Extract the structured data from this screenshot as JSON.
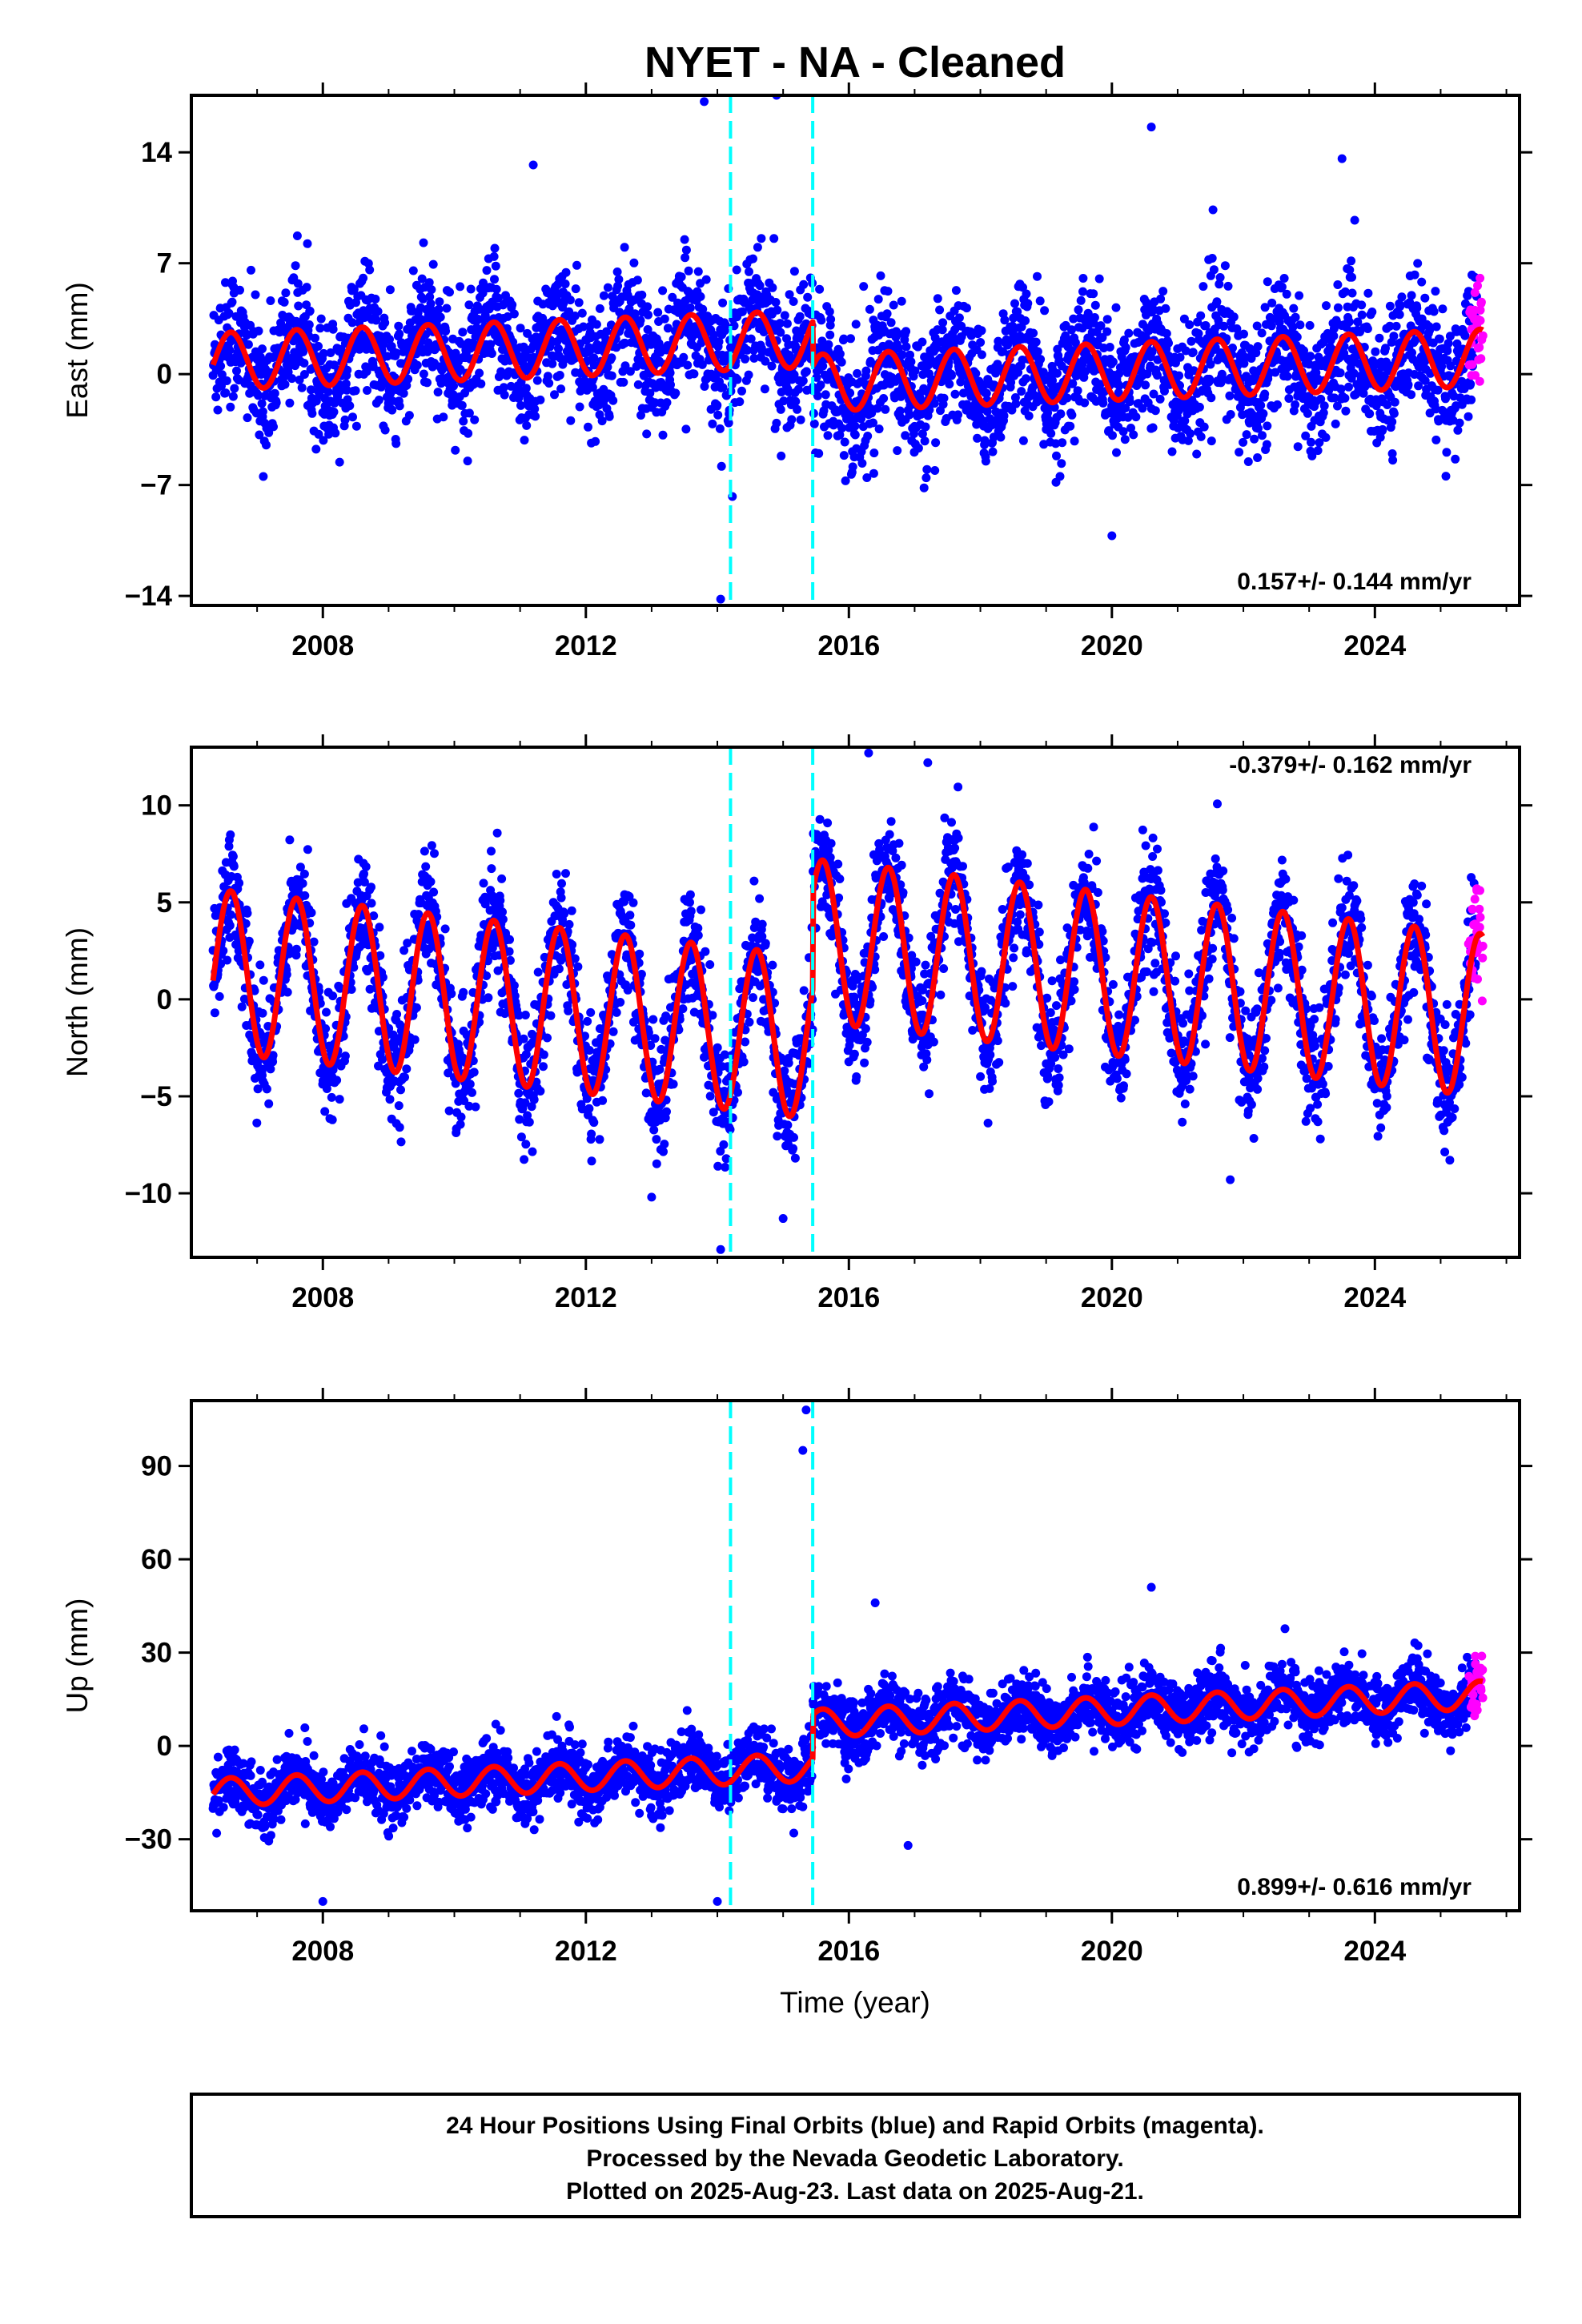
{
  "chart_data": {
    "type": "scatter",
    "title": "NYET  - NA - Cleaned",
    "xlabel": "Time (year)",
    "xlim": [
      2006.0,
      2026.2
    ],
    "x_ticks": [
      2008,
      2012,
      2016,
      2020,
      2024
    ],
    "step_epochs": [
      2014.2,
      2015.45
    ],
    "colors": {
      "final_orbits": "#0000ff",
      "rapid_orbits": "#ff00ff",
      "model_fit": "#ff0000",
      "steps": "#00ffff"
    },
    "panels": [
      {
        "ylabel": "East (mm)",
        "ylim": [
          -14.6,
          17.6
        ],
        "y_ticks": [
          14,
          7,
          0,
          -7,
          -14
        ],
        "rate": "0.157+/- 0.144 mm/yr",
        "rate_position": "bottom-right",
        "fit": {
          "baseline": 0.8,
          "amplitude": 1.8,
          "offset_after_2015_45": -2.8,
          "trend_per_yr": 0.157
        },
        "scatter_sd": 2.0,
        "outliers": [
          [
            2013.8,
            17.2
          ],
          [
            2014.9,
            17.6
          ],
          [
            2014.05,
            -14.2
          ],
          [
            2020.6,
            15.6
          ],
          [
            2011.2,
            13.2
          ],
          [
            2020.0,
            -10.2
          ],
          [
            2023.5,
            13.6
          ]
        ]
      },
      {
        "ylabel": "North (mm)",
        "ylim": [
          -13.3,
          13.0
        ],
        "y_ticks": [
          10,
          5,
          0,
          -5,
          -10
        ],
        "rate": "-0.379+/- 0.162 mm/yr",
        "rate_position": "top-right",
        "fit": {
          "baseline": 1.5,
          "amplitude": 4.2,
          "offset_after_2015_45": 5.0,
          "trend_per_yr": -0.379
        },
        "scatter_sd": 1.5,
        "outliers": [
          [
            2016.3,
            12.7
          ],
          [
            2017.2,
            12.2
          ],
          [
            2014.05,
            -12.9
          ],
          [
            2015.0,
            -11.3
          ],
          [
            2013.0,
            -10.2
          ],
          [
            2021.8,
            -9.3
          ]
        ]
      },
      {
        "ylabel": "Up (mm)",
        "ylim": [
          -53.0,
          111.0
        ],
        "y_ticks": [
          90,
          60,
          30,
          0,
          -30
        ],
        "rate": "0.899+/- 0.616 mm/yr",
        "rate_position": "bottom-right",
        "fit": {
          "baseline": -15.0,
          "amplitude": 4.5,
          "offset_after_2015_45": 14.0,
          "trend_per_yr": 0.899
        },
        "scatter_sd": 5.0,
        "outliers": [
          [
            2015.35,
            108.0
          ],
          [
            2015.3,
            95.0
          ],
          [
            2020.6,
            51.0
          ],
          [
            2016.4,
            46.0
          ],
          [
            2008.0,
            -50.0
          ],
          [
            2014.0,
            -50.0
          ],
          [
            2016.9,
            -32.0
          ]
        ]
      }
    ]
  },
  "footer": {
    "line1": "24 Hour Positions Using Final Orbits (blue) and Rapid Orbits (magenta).",
    "line2": "Processed by the Nevada Geodetic Laboratory.",
    "line3": "Plotted on 2025-Aug-23. Last data on 2025-Aug-21."
  }
}
